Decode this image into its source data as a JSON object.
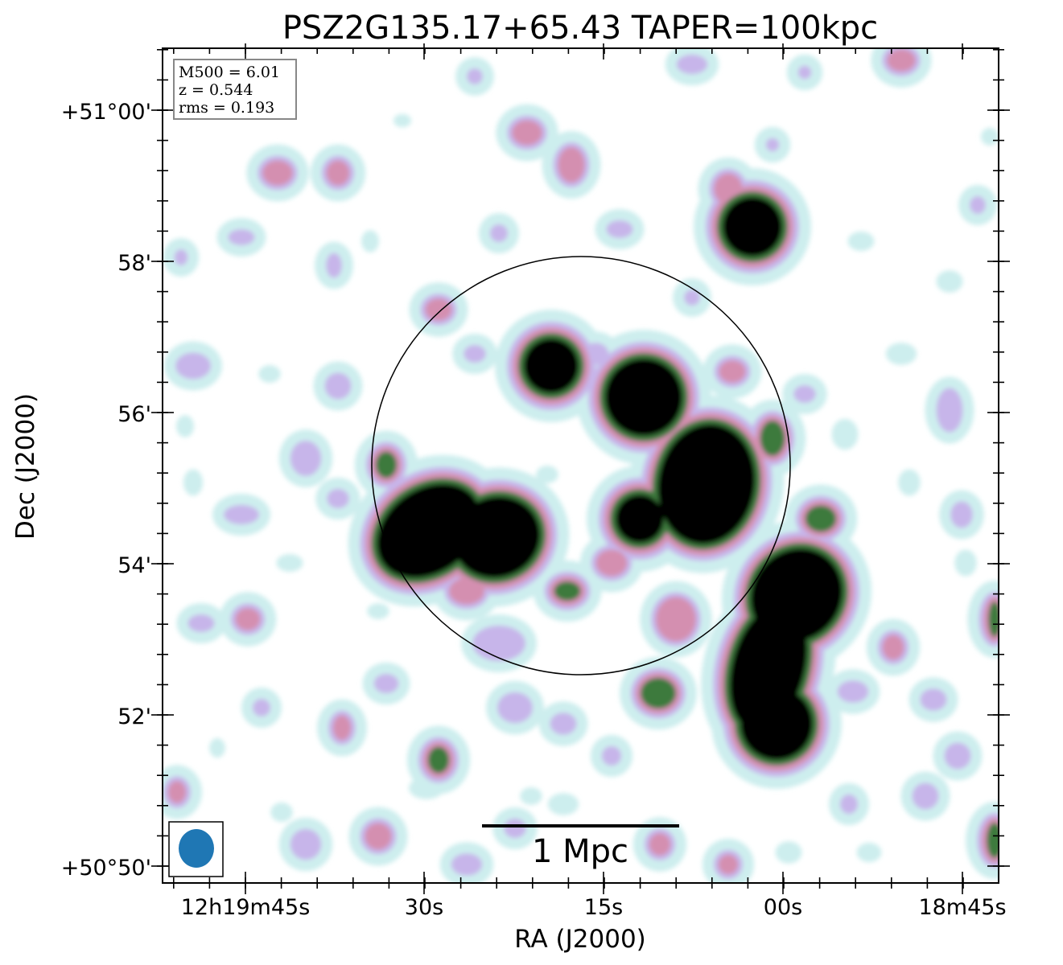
{
  "figure": {
    "title": "PSZ2G135.17+65.43 TAPER=100kpc",
    "xlabel": "RA (J2000)",
    "ylabel": "Dec (J2000)",
    "x_ticks": [
      "12h19m45s",
      "30s",
      "15s",
      "00s",
      "18m45s"
    ],
    "y_ticks": [
      "+51°00'",
      "58'",
      "56'",
      "54'",
      "52'",
      "+50°50'"
    ],
    "info_box": {
      "line1": "M500 = 6.01",
      "line2": "z = 0.544",
      "line3": "rms = 0.193"
    },
    "scale_bar_label": "1 Mpc",
    "colors": {
      "background": "#ffffff",
      "level_faint": "#cdeeee",
      "level_low": "#c7b5ea",
      "level_mid": "#d48fb0",
      "level_high": "#3d7a3d",
      "level_peak": "#000000",
      "beam": "#1f77b4"
    }
  }
}
